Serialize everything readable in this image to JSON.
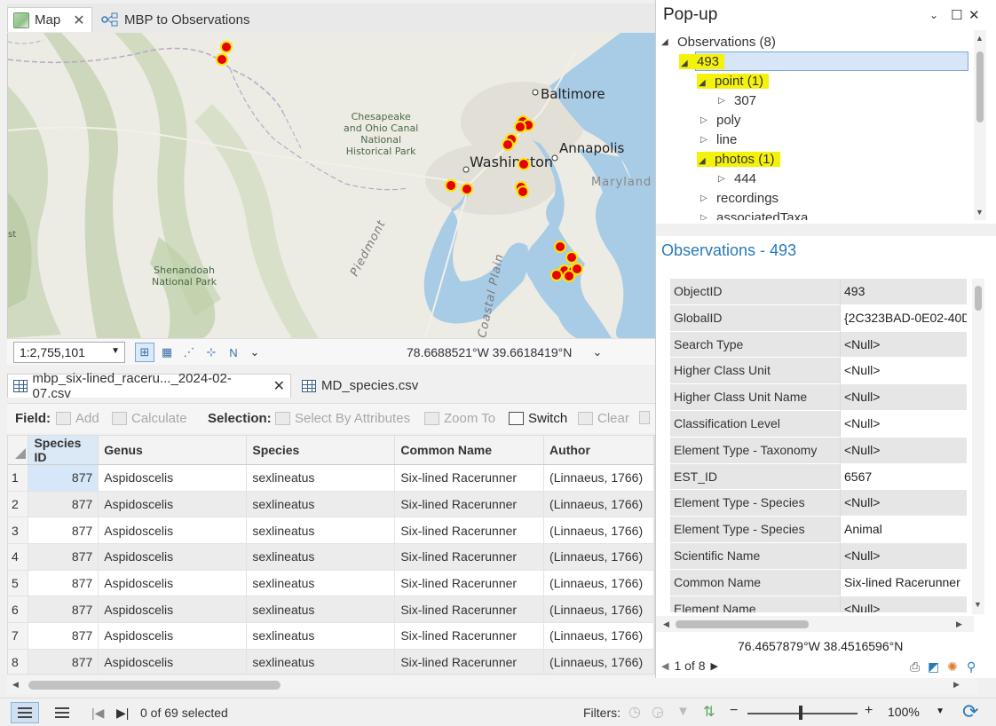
{
  "top_tabs": [
    {
      "label": "Map",
      "active": true
    },
    {
      "label": "MBP to Observations",
      "active": false
    }
  ],
  "map": {
    "labels": {
      "baltimore": "Baltimore",
      "annapolis": "Annapolis",
      "washington": "Washington",
      "maryland": "Maryland",
      "co_canal": [
        "Chesapeake",
        "and Ohio Canal",
        "National",
        "Historical Park"
      ],
      "shenandoah": [
        "Shenandoah",
        "National Park"
      ],
      "piedmont": "Piedmont",
      "coastal_plain": "Coastal Plain",
      "edge_text": "st"
    },
    "scale": "1:2,755,101",
    "coordinates": "78.6688521°W 39.6618419°N"
  },
  "table_tabs": [
    {
      "label": "mbp_six-lined_raceru..._2024-02-07.csv",
      "active": true
    },
    {
      "label": "MD_species.csv",
      "active": false
    }
  ],
  "toolbar": {
    "field_label": "Field:",
    "add": "Add",
    "calculate": "Calculate",
    "selection_label": "Selection:",
    "select_by_attributes": "Select By Attributes",
    "zoom_to": "Zoom To",
    "switch": "Switch",
    "clear": "Clear"
  },
  "table": {
    "columns": [
      "Species ID",
      "Genus",
      "Species",
      "Common Name",
      "Author"
    ],
    "rows": [
      {
        "num": "1",
        "species_id": "877",
        "genus": "Aspidoscelis",
        "species": "sexlineatus",
        "common": "Six-lined Racerunner",
        "author": "(Linnaeus, 1766)"
      },
      {
        "num": "2",
        "species_id": "877",
        "genus": "Aspidoscelis",
        "species": "sexlineatus",
        "common": "Six-lined Racerunner",
        "author": "(Linnaeus, 1766)"
      },
      {
        "num": "3",
        "species_id": "877",
        "genus": "Aspidoscelis",
        "species": "sexlineatus",
        "common": "Six-lined Racerunner",
        "author": "(Linnaeus, 1766)"
      },
      {
        "num": "4",
        "species_id": "877",
        "genus": "Aspidoscelis",
        "species": "sexlineatus",
        "common": "Six-lined Racerunner",
        "author": "(Linnaeus, 1766)"
      },
      {
        "num": "5",
        "species_id": "877",
        "genus": "Aspidoscelis",
        "species": "sexlineatus",
        "common": "Six-lined Racerunner",
        "author": "(Linnaeus, 1766)"
      },
      {
        "num": "6",
        "species_id": "877",
        "genus": "Aspidoscelis",
        "species": "sexlineatus",
        "common": "Six-lined Racerunner",
        "author": "(Linnaeus, 1766)"
      },
      {
        "num": "7",
        "species_id": "877",
        "genus": "Aspidoscelis",
        "species": "sexlineatus",
        "common": "Six-lined Racerunner",
        "author": "(Linnaeus, 1766)"
      },
      {
        "num": "8",
        "species_id": "877",
        "genus": "Aspidoscelis",
        "species": "sexlineatus",
        "common": "Six-lined Racerunner",
        "author": "(Linnaeus, 1766)"
      }
    ]
  },
  "status": {
    "selected": "0 of 69 selected",
    "filters_label": "Filters:",
    "zoom": "100%"
  },
  "popup": {
    "title": "Pop-up",
    "tree": {
      "root": "Observations (8)",
      "item": "493",
      "point": "point (1)",
      "point_child": "307",
      "poly": "poly",
      "line": "line",
      "photos": "photos (1)",
      "photos_child": "444",
      "recordings": "recordings",
      "associated": "associatedTaxa"
    },
    "record_title": "Observations - 493",
    "attributes": [
      {
        "k": "ObjectID",
        "v": "493"
      },
      {
        "k": "GlobalID",
        "v": "{2C323BAD-0E02-40D"
      },
      {
        "k": "Search Type",
        "v": "<Null>"
      },
      {
        "k": "Higher Class Unit",
        "v": "<Null>"
      },
      {
        "k": "Higher Class Unit Name",
        "v": "<Null>"
      },
      {
        "k": "Classification Level",
        "v": "<Null>"
      },
      {
        "k": "Element Type - Taxonomy",
        "v": "<Null>"
      },
      {
        "k": "EST_ID",
        "v": "6567"
      },
      {
        "k": "Element Type - Species",
        "v": "<Null>"
      },
      {
        "k": "Element Type - Species",
        "v": "Animal"
      },
      {
        "k": "Scientific Name",
        "v": "<Null>"
      },
      {
        "k": "Common Name",
        "v": "Six-lined Racerunner"
      },
      {
        "k": "Element Name",
        "v": "<Null>"
      }
    ],
    "coordinates": "76.4657879°W 38.4516596°N",
    "pager": "1 of 8"
  },
  "colors": {
    "highlight": "#f5f20a",
    "accent": "#2a7ab8",
    "marker": "#e60000",
    "marker_halo": "#f7e600"
  }
}
